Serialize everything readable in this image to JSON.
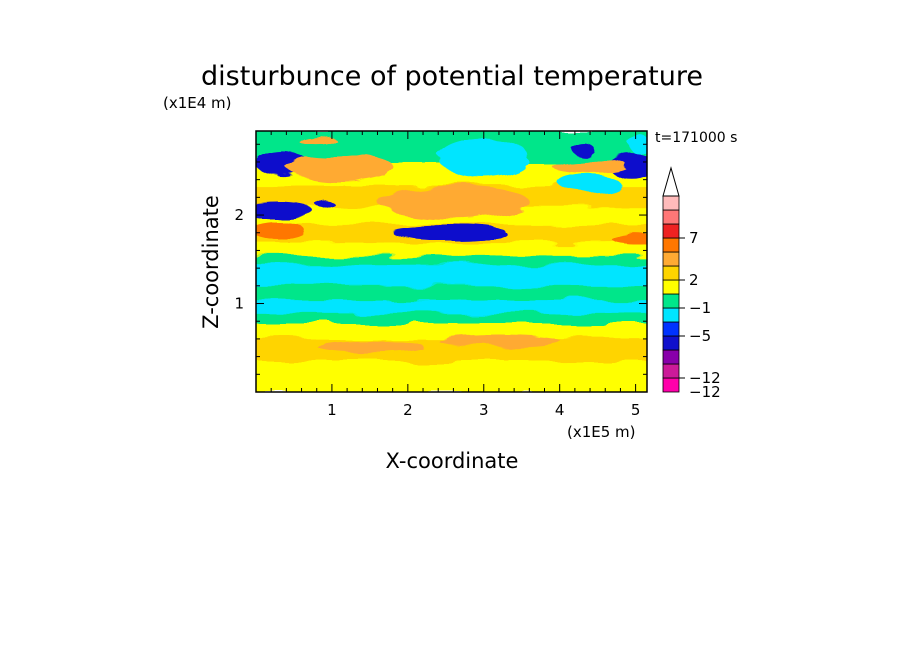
{
  "chart_data": {
    "type": "heatmap",
    "title": "disturbunce of potential temperature",
    "xlabel": "X-coordinate",
    "ylabel": "Z-coordinate",
    "x_unit": "(x1E5 m)",
    "y_unit": "(x1E4 m)",
    "time_label": "t=171000 s",
    "xlim": [
      0,
      5.15
    ],
    "ylim": [
      0,
      2.95
    ],
    "x_ticks": [
      "1",
      "2",
      "3",
      "4",
      "5"
    ],
    "y_ticks": [
      "1",
      "2"
    ],
    "colorbar": {
      "tick_labels": [
        "7",
        "2",
        "−1",
        "−5",
        "−12"
      ],
      "colors": [
        "#ff00aa",
        "#cc1a99",
        "#8800aa",
        "#1111cc",
        "#0033ff",
        "#00e5ff",
        "#00e68a",
        "#ffff00",
        "#ffd400",
        "#ffaa33",
        "#ff7700",
        "#ee2222",
        "#ff7777",
        "#ffbbbb"
      ],
      "extend": "max"
    },
    "bands": [
      {
        "z": [
          0.0,
          0.1
        ],
        "level": 7
      },
      {
        "z": [
          0.1,
          0.35
        ],
        "level": 7
      },
      {
        "z": [
          0.35,
          0.62
        ],
        "level": 8
      },
      {
        "z": [
          0.62,
          0.78
        ],
        "level": 7
      },
      {
        "z": [
          0.78,
          0.9
        ],
        "level": 6
      },
      {
        "z": [
          0.9,
          1.05
        ],
        "level": 5
      },
      {
        "z": [
          1.05,
          1.2
        ],
        "level": 6
      },
      {
        "z": [
          1.2,
          1.45
        ],
        "level": 5
      },
      {
        "z": [
          1.45,
          1.55
        ],
        "level": 6
      },
      {
        "z": [
          1.55,
          1.7
        ],
        "level": 7
      },
      {
        "z": [
          1.7,
          1.9
        ],
        "level": 8
      },
      {
        "z": [
          1.9,
          2.1
        ],
        "level": 7
      },
      {
        "z": [
          2.1,
          2.35
        ],
        "level": 8
      },
      {
        "z": [
          2.35,
          2.6
        ],
        "level": 7
      },
      {
        "z": [
          2.6,
          2.95
        ],
        "level": 6
      }
    ],
    "blobs": [
      {
        "x": 0.3,
        "z": 1.82,
        "rx": 0.35,
        "rz": 0.09,
        "level": 10
      },
      {
        "x": 5.0,
        "z": 1.72,
        "rx": 0.3,
        "rz": 0.07,
        "level": 10
      },
      {
        "x": 0.3,
        "z": 2.05,
        "rx": 0.45,
        "rz": 0.08,
        "level": 3
      },
      {
        "x": 0.9,
        "z": 2.13,
        "rx": 0.12,
        "rz": 0.05,
        "level": 3
      },
      {
        "x": 0.35,
        "z": 2.58,
        "rx": 0.35,
        "rz": 0.14,
        "level": 3
      },
      {
        "x": 4.95,
        "z": 2.55,
        "rx": 0.3,
        "rz": 0.14,
        "level": 3
      },
      {
        "x": 4.3,
        "z": 2.75,
        "rx": 0.15,
        "rz": 0.07,
        "level": 3
      },
      {
        "x": 2.55,
        "z": 1.8,
        "rx": 0.75,
        "rz": 0.07,
        "level": 3
      },
      {
        "x": 3.0,
        "z": 2.65,
        "rx": 0.6,
        "rz": 0.22,
        "level": 5
      },
      {
        "x": 4.4,
        "z": 2.35,
        "rx": 0.4,
        "rz": 0.1,
        "level": 5
      },
      {
        "x": 5.05,
        "z": 2.8,
        "rx": 0.12,
        "rz": 0.12,
        "level": 5
      },
      {
        "x": 2.6,
        "z": 2.15,
        "rx": 1.0,
        "rz": 0.18,
        "level": 9
      },
      {
        "x": 1.1,
        "z": 2.55,
        "rx": 0.7,
        "rz": 0.16,
        "level": 9
      },
      {
        "x": 4.4,
        "z": 2.55,
        "rx": 0.5,
        "rz": 0.08,
        "level": 9
      },
      {
        "x": 0.8,
        "z": 2.85,
        "rx": 0.25,
        "rz": 0.06,
        "level": 9
      },
      {
        "x": 1.5,
        "z": 0.52,
        "rx": 0.7,
        "rz": 0.07,
        "level": 9
      },
      {
        "x": 3.2,
        "z": 0.58,
        "rx": 0.8,
        "rz": 0.07,
        "level": 9
      },
      {
        "x": 1.3,
        "z": 1.1,
        "rx": 0.6,
        "rz": 0.06,
        "level": 6
      },
      {
        "x": 3.8,
        "z": 1.12,
        "rx": 0.7,
        "rz": 0.05,
        "level": 6
      },
      {
        "x": 1.0,
        "z": 2.72,
        "rx": 0.5,
        "rz": 0.07,
        "level": 6
      }
    ]
  }
}
